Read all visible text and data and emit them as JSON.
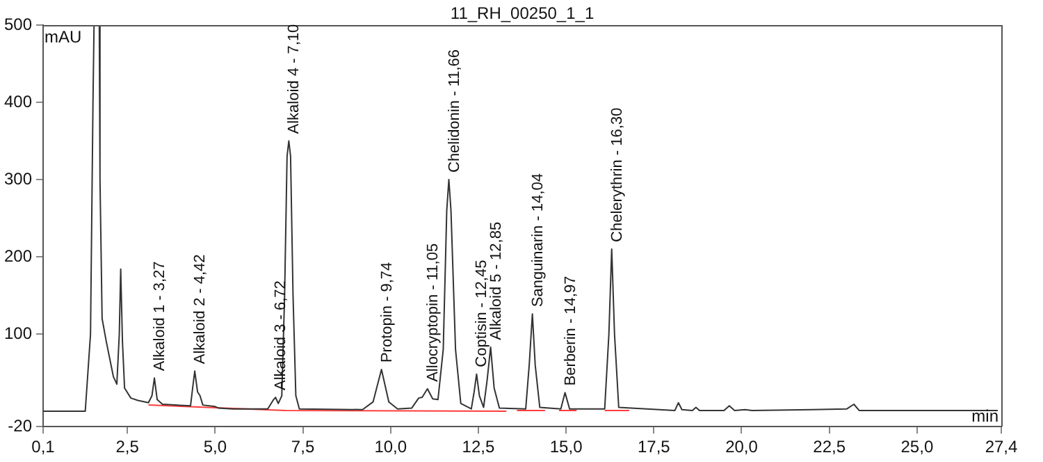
{
  "chart_data": {
    "type": "line",
    "title": "11_RH_00250_1_1",
    "xlabel": "min",
    "ylabel": "mAU",
    "x": [
      0.1,
      1.3,
      1.45,
      1.52,
      1.55,
      1.7,
      1.72,
      1.78,
      1.9,
      2.1,
      2.2,
      2.27,
      2.31,
      2.36,
      2.42,
      2.6,
      2.8,
      3.1,
      3.2,
      3.27,
      3.35,
      3.5,
      4.3,
      4.36,
      4.42,
      4.5,
      4.57,
      4.65,
      5.0,
      5.1,
      5.5,
      6.5,
      6.65,
      6.72,
      6.8,
      6.9,
      6.98,
      7.05,
      7.1,
      7.15,
      7.22,
      7.3,
      7.4,
      9.2,
      9.5,
      9.74,
      9.95,
      10.2,
      10.6,
      10.8,
      10.9,
      11.05,
      11.2,
      11.35,
      11.5,
      11.6,
      11.66,
      11.72,
      11.85,
      12.0,
      12.3,
      12.38,
      12.45,
      12.53,
      12.65,
      12.75,
      12.85,
      12.95,
      13.1,
      13.85,
      13.95,
      14.04,
      14.12,
      14.25,
      14.85,
      14.97,
      15.1,
      16.1,
      16.22,
      16.3,
      16.38,
      16.5,
      18.1,
      18.2,
      18.3,
      18.6,
      18.7,
      18.8,
      19.5,
      19.65,
      19.8,
      20.1,
      20.3,
      22.0,
      23.0,
      23.2,
      23.35,
      27.3
    ],
    "series": [
      {
        "color": "#333333",
        "values": [
          0,
          0,
          100,
          400,
          500,
          500,
          300,
          120,
          90,
          45,
          35,
          100,
          184,
          90,
          30,
          17,
          14,
          11,
          20,
          43,
          15,
          9,
          7,
          30,
          52,
          25,
          20,
          8,
          6,
          4,
          3,
          3,
          14,
          18,
          10,
          20,
          150,
          330,
          350,
          330,
          150,
          20,
          3,
          2,
          12,
          54,
          12,
          3,
          4,
          17,
          18,
          29,
          16,
          15,
          80,
          260,
          300,
          260,
          80,
          10,
          3,
          25,
          48,
          20,
          5,
          40,
          83,
          30,
          4,
          3,
          60,
          126,
          60,
          5,
          3,
          24,
          3,
          3,
          100,
          210,
          100,
          5,
          1,
          11,
          2,
          1,
          5,
          1,
          1,
          7,
          1,
          2,
          1,
          2,
          3,
          9,
          1,
          1
        ]
      },
      {
        "color": "#ff3b3b",
        "x": [
          3.1,
          7.0,
          13.3,
          13.35,
          13.6,
          14.4,
          14.45,
          14.8,
          15.3,
          15.35,
          16.1,
          16.8
        ],
        "values": [
          8,
          1,
          0,
          null,
          1,
          1,
          null,
          1,
          1,
          null,
          1,
          1
        ]
      }
    ],
    "xlim": [
      0.1,
      27.4
    ],
    "ylim": [
      -20,
      500
    ],
    "xticks": [
      {
        "value": 0.1,
        "label": "0,1"
      },
      {
        "value": 2.5,
        "label": "2,5"
      },
      {
        "value": 5,
        "label": "5,0"
      },
      {
        "value": 7.5,
        "label": "7,5"
      },
      {
        "value": 10,
        "label": "10,0"
      },
      {
        "value": 12.5,
        "label": "12,5"
      },
      {
        "value": 15,
        "label": "15,0"
      },
      {
        "value": 17.5,
        "label": "17,5"
      },
      {
        "value": 20,
        "label": "20,0"
      },
      {
        "value": 22.5,
        "label": "22,5"
      },
      {
        "value": 25,
        "label": "25,0"
      },
      {
        "value": 27.4,
        "label": "27,4"
      }
    ],
    "yticks": [
      -20,
      100,
      200,
      300,
      400,
      500
    ],
    "annotations": [
      {
        "text": "Alkaloid 1 - 3,27",
        "x": 3.27,
        "y": 43
      },
      {
        "text": "Alkaloid 2 - 4,42",
        "x": 4.42,
        "y": 52
      },
      {
        "text": "Alkaloid 3 - 6,72",
        "x": 6.72,
        "y": 18
      },
      {
        "text": "Alkaloid 4 - 7,10",
        "x": 7.1,
        "y": 350
      },
      {
        "text": "Protopin - 9,74",
        "x": 9.74,
        "y": 54
      },
      {
        "text": "Allocryptopin - 11,05",
        "x": 11.05,
        "y": 29
      },
      {
        "text": "Chelidonin - 11,66",
        "x": 11.66,
        "y": 300
      },
      {
        "text": "Coptisin - 12,45",
        "x": 12.45,
        "y": 48
      },
      {
        "text": "Alkaloid 5 - 12,85",
        "x": 12.85,
        "y": 83
      },
      {
        "text": "Sanguinarin - 14,04",
        "x": 14.04,
        "y": 126
      },
      {
        "text": "Berberin - 14,97",
        "x": 14.97,
        "y": 24
      },
      {
        "text": "Chelerythrin - 16,30",
        "x": 16.3,
        "y": 210
      }
    ],
    "grid": false,
    "legend": false,
    "marker": "none",
    "line_style": "solid"
  }
}
